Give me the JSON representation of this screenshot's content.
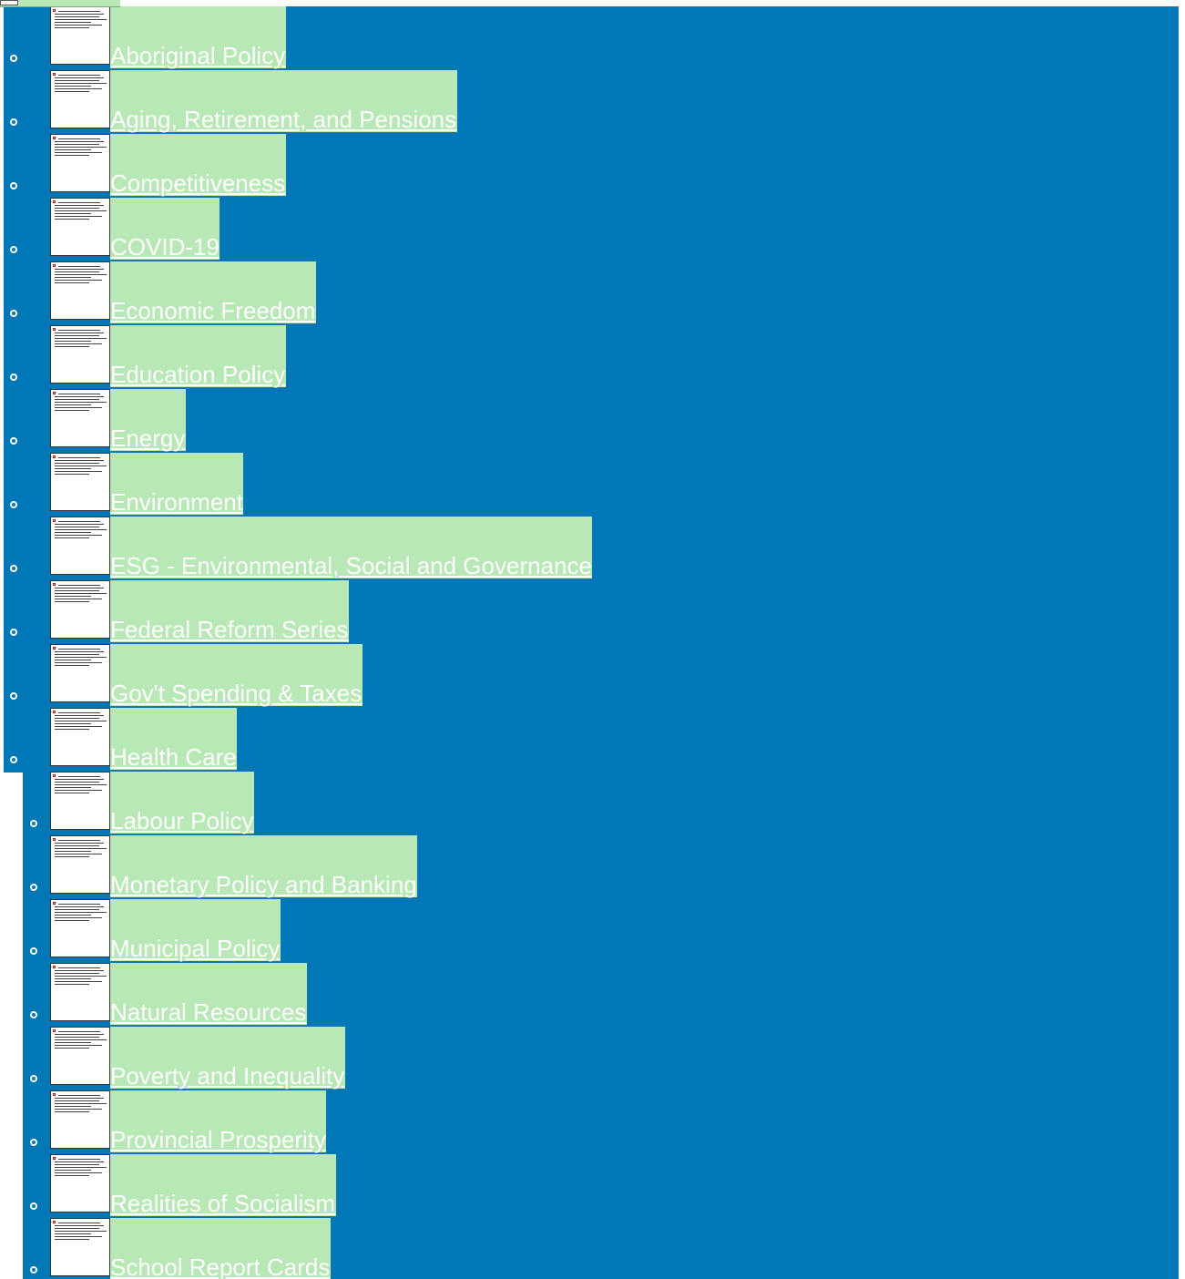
{
  "topics": [
    {
      "label": "Aboriginal Policy"
    },
    {
      "label": "Aging, Retirement, and Pensions"
    },
    {
      "label": "Competitiveness"
    },
    {
      "label": "COVID-19"
    },
    {
      "label": "Economic Freedom"
    },
    {
      "label": "Education Policy"
    },
    {
      "label": "Energy"
    },
    {
      "label": "Environment"
    },
    {
      "label": "ESG - Environmental, Social and Governance"
    },
    {
      "label": "Federal Reform Series"
    },
    {
      "label": "Gov't Spending & Taxes"
    },
    {
      "label": "Health Care"
    },
    {
      "label": "Labour Policy"
    },
    {
      "label": "Monetary Policy and Banking"
    },
    {
      "label": "Municipal Policy"
    },
    {
      "label": "Natural Resources"
    },
    {
      "label": "Poverty and Inequality"
    },
    {
      "label": "Provincial Prosperity"
    },
    {
      "label": "Realities of Socialism"
    },
    {
      "label": "School Report Cards"
    }
  ],
  "colors": {
    "panel_blue": "#0077b6",
    "label_green": "#b8e8b5",
    "link_text": "#ffffff"
  },
  "icons": {
    "bullet": "circle-bullet-icon",
    "thumbnail": "topic-thumbnail"
  }
}
